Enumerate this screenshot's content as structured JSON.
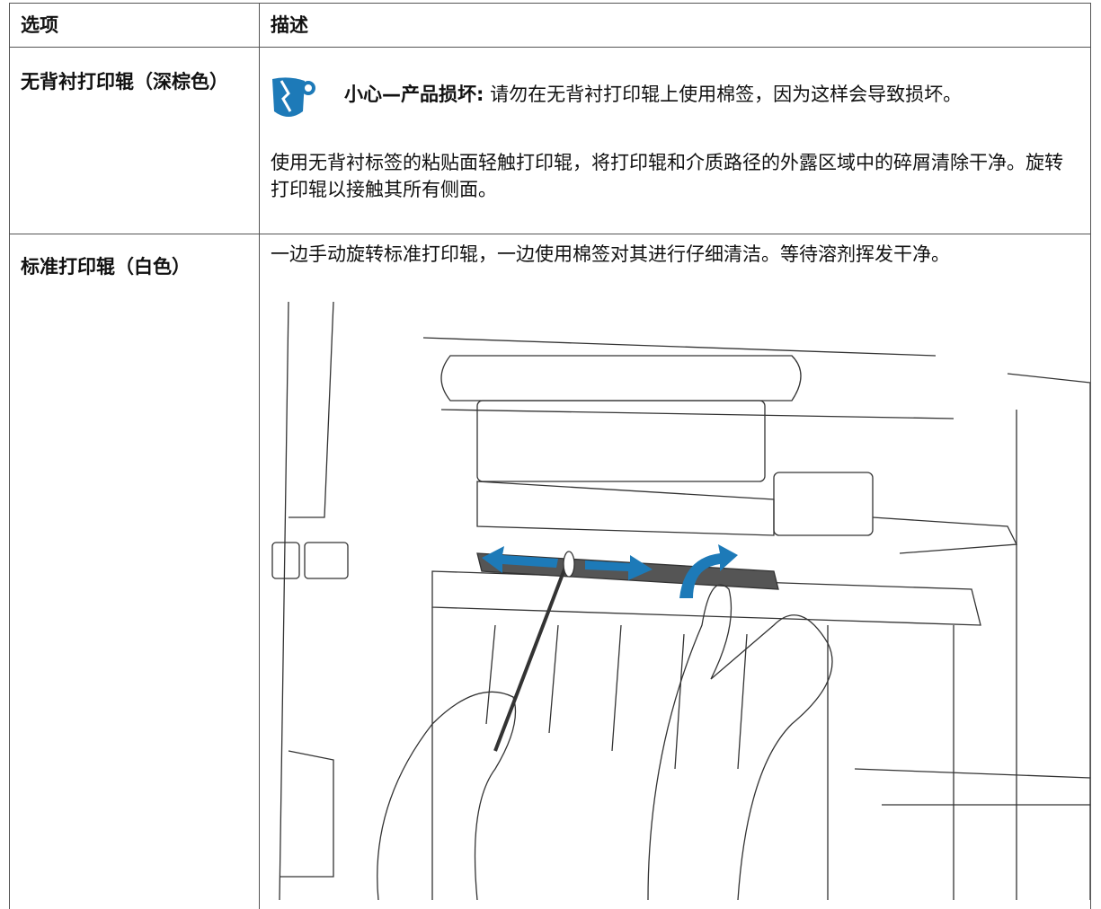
{
  "table": {
    "header": [
      "选项",
      "描述"
    ],
    "rows": [
      {
        "option": "无背衬打印辊（深棕色）",
        "caution_label": "小心—产品损坏:",
        "caution_text": "请勿在无背衬打印辊上使用棉签，因为这样会导致损坏。",
        "description": "使用无背衬标签的粘贴面轻触打印辊，将打印辊和介质路径的外露区域中的碎屑清除干净。旋转打印辊以接触其所有侧面。"
      },
      {
        "option": "标准打印辊（白色）",
        "description": "一边手动旋转标准打印辊，一边使用棉签对其进行仔细清洁。等待溶剂挥发干净。"
      }
    ]
  }
}
